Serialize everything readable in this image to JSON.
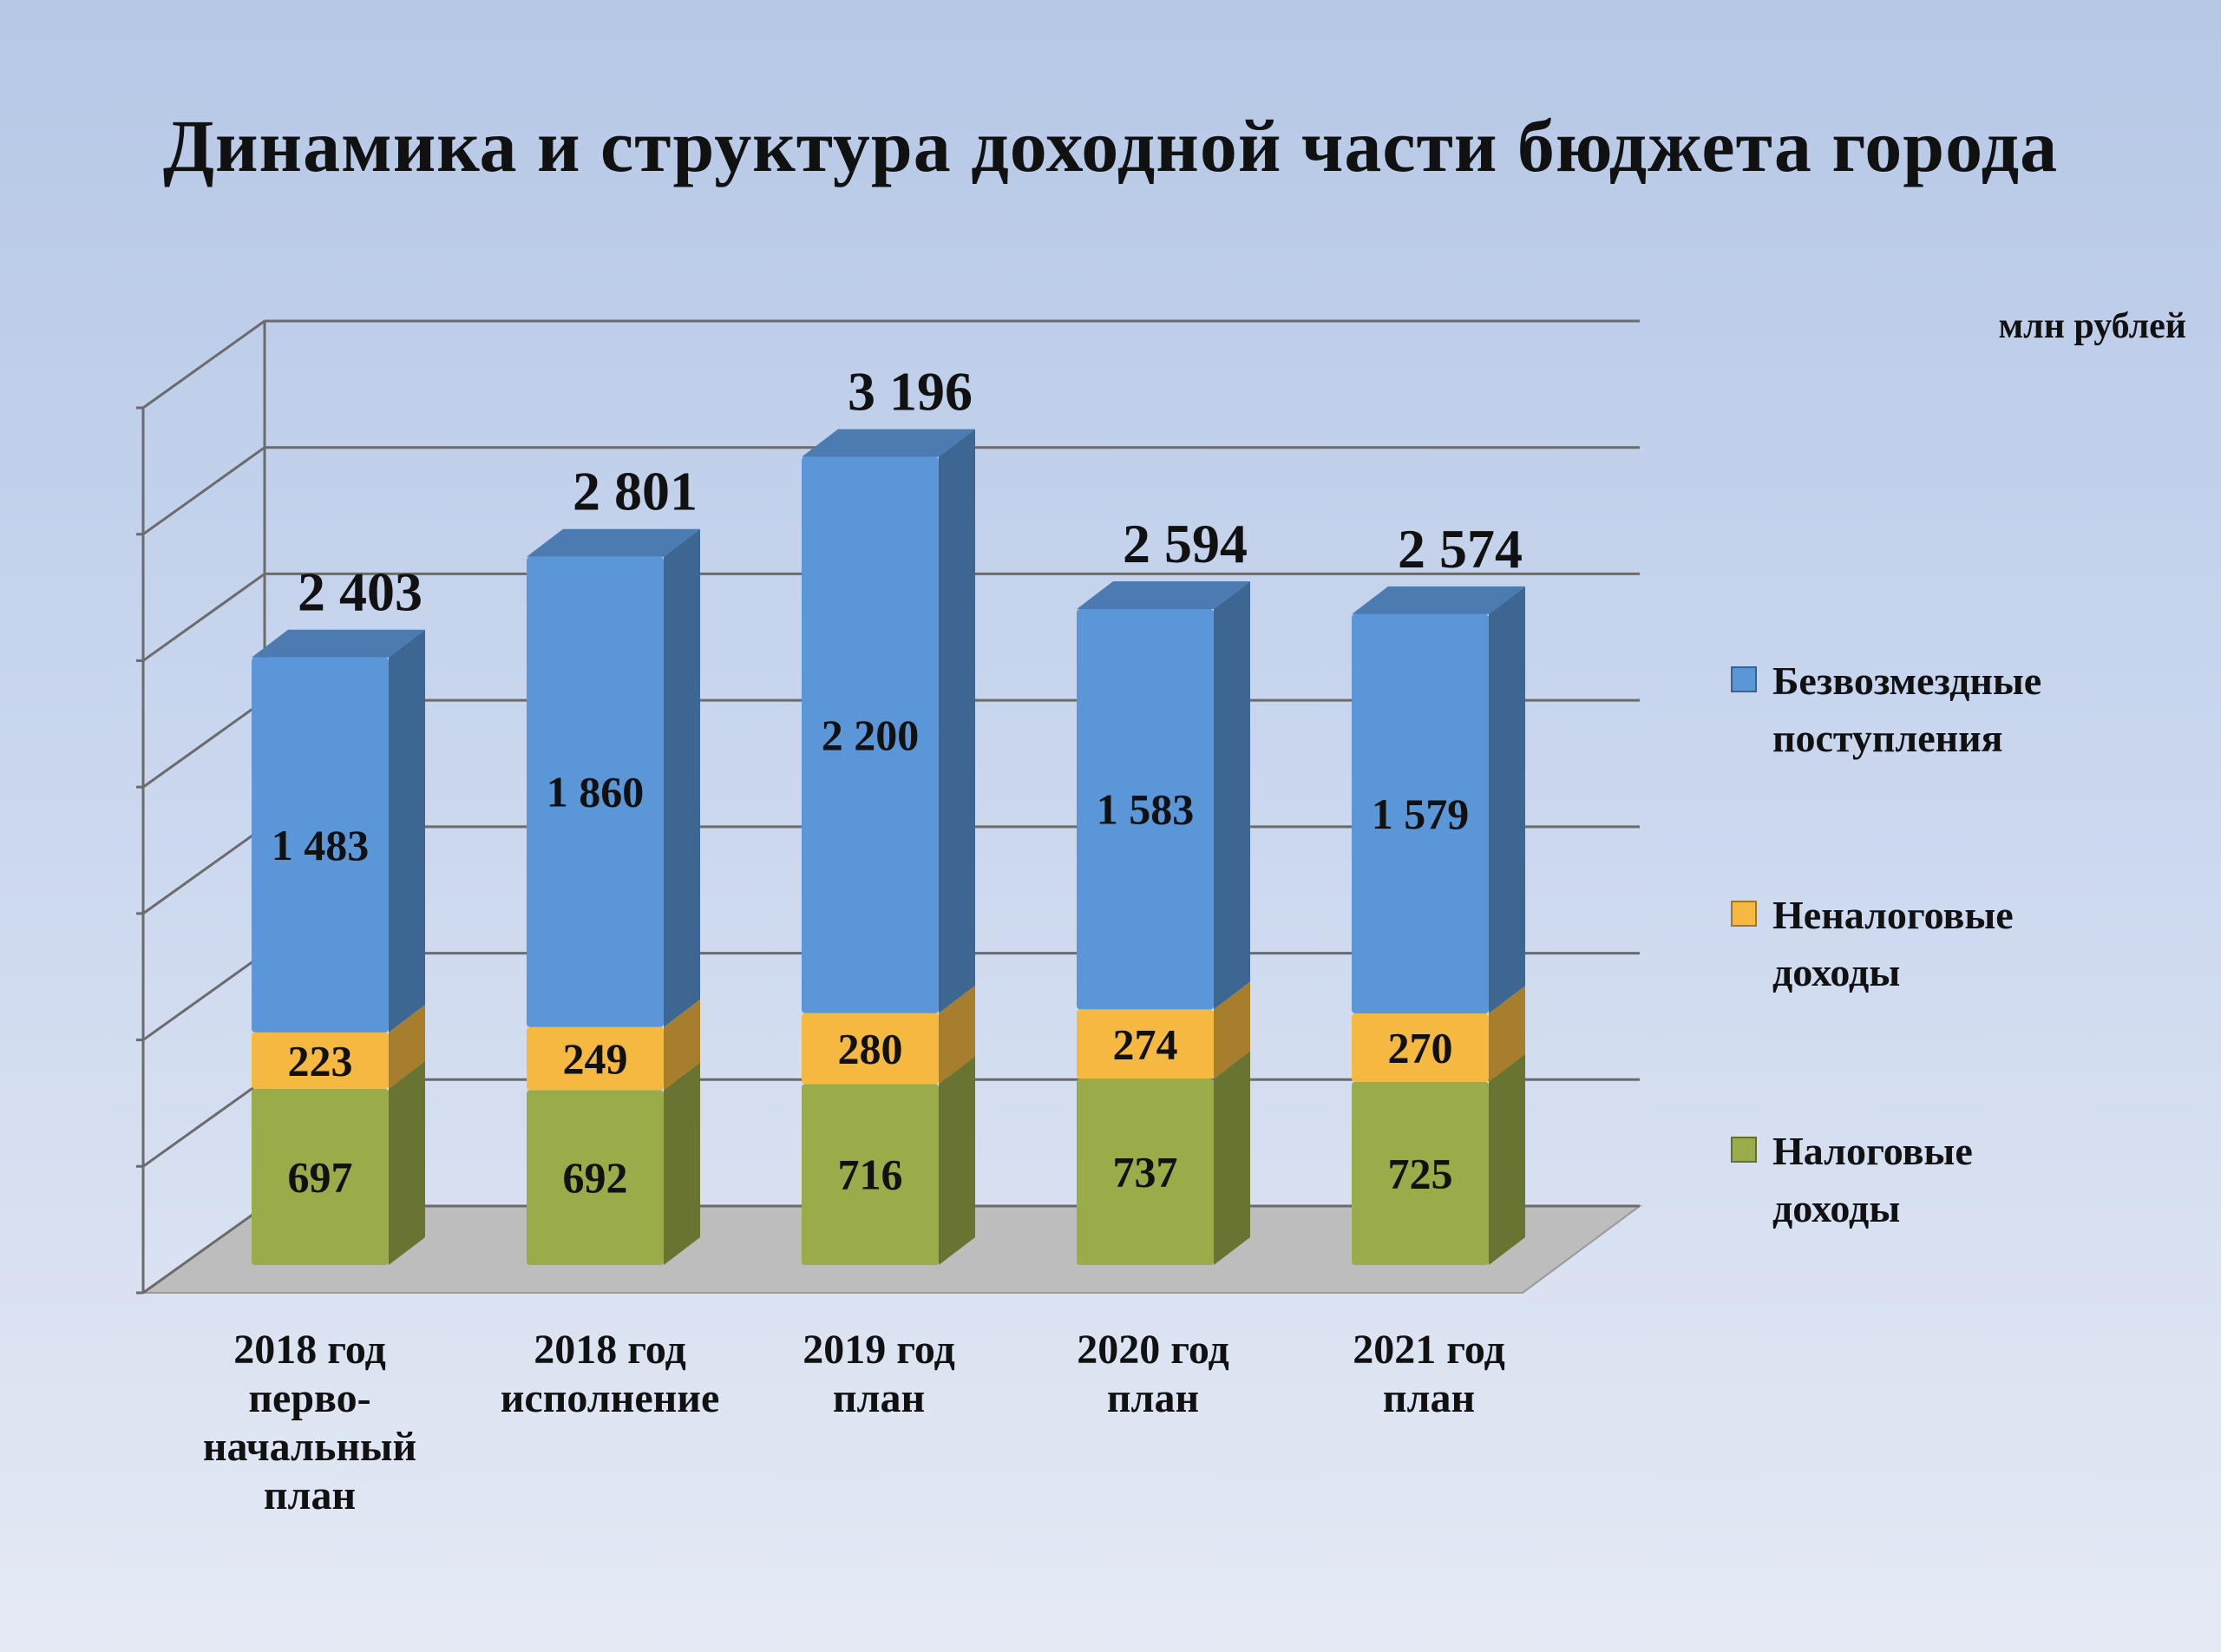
{
  "title": "Динамика и структура доходной части бюджета города",
  "unit_label": "млн рублей",
  "colors": {
    "tax": "#9aab4a",
    "nontax": "#f5b942",
    "grants": "#5b96d8",
    "floor": "#bdbdbd",
    "gridline": "#6b6b6b"
  },
  "legend": [
    {
      "name": "Безвозмездные\nпоступления",
      "color": "#5b96d8"
    },
    {
      "name": "Неналоговые\nдоходы",
      "color": "#f5b942"
    },
    {
      "name": "Налоговые\nдоходы",
      "color": "#9aab4a"
    }
  ],
  "chart_data": {
    "type": "bar",
    "stacked": true,
    "three_d": true,
    "categories": [
      "2018 год\nперво-\nначальный\nплан",
      "2018 год\nисполнение",
      "2019 год\nплан",
      "2020 год\nплан",
      "2021 год\nплан"
    ],
    "series": [
      {
        "name": "Налоговые доходы",
        "values": [
          697,
          692,
          716,
          737,
          725
        ]
      },
      {
        "name": "Неналоговые доходы",
        "values": [
          223,
          249,
          280,
          274,
          270
        ]
      },
      {
        "name": "Безвозмездные поступления",
        "values": [
          1483,
          1860,
          2200,
          1583,
          1579
        ]
      }
    ],
    "series_labels": [
      [
        "697",
        "692",
        "716",
        "737",
        "725"
      ],
      [
        "223",
        "249",
        "280",
        "274",
        "270"
      ],
      [
        "1 483",
        "1 860",
        "2 200",
        "1 583",
        "1 579"
      ]
    ],
    "totals": [
      2403,
      2801,
      3196,
      2594,
      2574
    ],
    "total_labels": [
      "2 403",
      "2 801",
      "3 196",
      "2 594",
      "2 574"
    ],
    "ylim": [
      0,
      3500
    ],
    "grid": true,
    "legend_position": "right",
    "xlabel": "",
    "ylabel": ""
  }
}
